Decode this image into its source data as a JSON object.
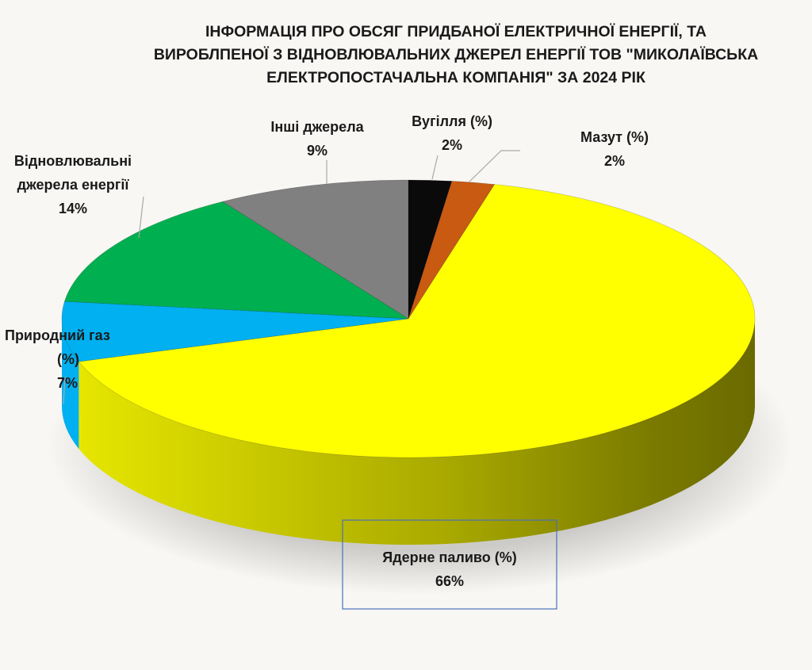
{
  "title": {
    "line1": "ІНФОРМАЦІЯ ПРО ОБСЯГ ПРИДБАНОЇ ЕЛЕКТРИЧНОЇ ЕНЕРГІЇ, ТА",
    "line2": "ВИРОБЛПЕНОЇ З ВІДНОВЛЮВАЛЬНИХ ДЖЕРЕЛ ЕНЕРГІЇ ТОВ \"МИКОЛАЇВСЬКА",
    "line3": "ЕЛЕКТРОПОСТАЧАЛЬНА КОМПАНІЯ\" ЗА 2024 РІК"
  },
  "chart_data": {
    "type": "pie",
    "style": "3d",
    "title": "ІНФОРМАЦІЯ ПРО ОБСЯГ ПРИДБАНОЇ ЕЛЕКТРИЧНОЇ ЕНЕРГІЇ, ТА ВИРОБЛПЕНОЇ З ВІДНОВЛЮВАЛЬНИХ ДЖЕРЕЛ ЕНЕРГІЇ ТОВ \"МИКОЛАЇВСЬКА ЕЛЕКТРОПОСТАЧАЛЬНА КОМПАНІЯ\" ЗА 2024 РІК",
    "slices": [
      {
        "label": "Вугілля (%)",
        "value": 2,
        "display": "2%",
        "color": "#0a0a0a"
      },
      {
        "label": "Мазут (%)",
        "value": 2,
        "display": "2%",
        "color": "#c85a12"
      },
      {
        "label": "Ядерне паливо (%)",
        "value": 66,
        "display": "66%",
        "color": "#ffff00"
      },
      {
        "label": "Природний газ (%)",
        "value": 7,
        "display": "7%",
        "color": "#00b0f0"
      },
      {
        "label": "Відновлювальні джерела енергії",
        "value": 14,
        "display": "14%",
        "color": "#00b050"
      },
      {
        "label": "Інші джерела",
        "value": 9,
        "display": "9%",
        "color": "#808080"
      }
    ],
    "labels": {
      "coal": {
        "name": "Вугілля (%)",
        "pct": "2%"
      },
      "fuel_oil": {
        "name": "Мазут (%)",
        "pct": "2%"
      },
      "nuclear": {
        "name": "Ядерне паливо (%)",
        "pct": "66%"
      },
      "gas": {
        "line1": "Природний газ",
        "line2": "(%)",
        "pct": "7%"
      },
      "renewable": {
        "line1": "Відновлювальні",
        "line2": "джерела енергії",
        "pct": "14%"
      },
      "other": {
        "name": "Інші джерела",
        "pct": "9%"
      }
    }
  }
}
